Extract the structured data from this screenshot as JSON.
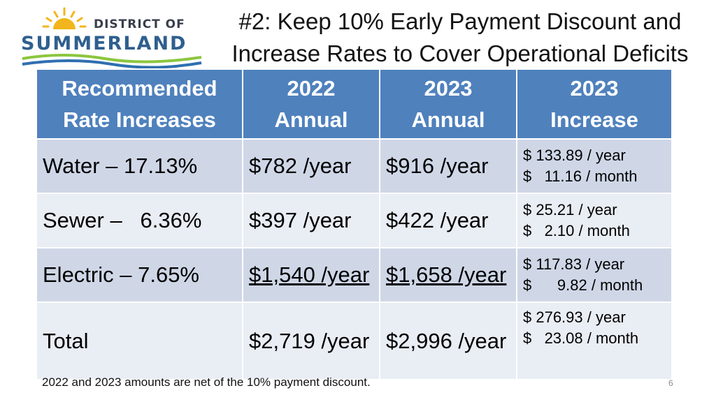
{
  "logo": {
    "line1": "DISTRICT OF",
    "line2": "SUMMERLAND"
  },
  "title": {
    "line1": "#2: Keep 10% Early Payment Discount and",
    "line2": "Increase Rates to Cover Operational Deficits"
  },
  "table": {
    "headers": [
      {
        "line1": "Recommended",
        "line2": "Rate Increases"
      },
      {
        "line1": "2022",
        "line2": "Annual"
      },
      {
        "line1": "2023",
        "line2": "Annual"
      },
      {
        "line1": "2023",
        "line2": "Increase"
      }
    ],
    "rows": [
      {
        "label": "Water – 17.13%",
        "annual_2022": "$782 /year",
        "annual_2023": "$916 /year",
        "increase_year": "$ 133.89 / year",
        "increase_month": "$   11.16 / month"
      },
      {
        "label": "Sewer –   6.36%",
        "annual_2022": "$397 /year",
        "annual_2023": "$422 /year",
        "increase_year": "$ 25.21 / year",
        "increase_month": "$   2.10 / month"
      },
      {
        "label": "Electric – 7.65%",
        "annual_2022": "$1,540 /year",
        "annual_2023": "$1,658 /year",
        "increase_year": "$ 117.83 / year",
        "increase_month": "$      9.82 / month"
      },
      {
        "label": "Total",
        "annual_2022": "$2,719 /year",
        "annual_2023": "$2,996 /year",
        "increase_year": "$ 276.93 / year",
        "increase_month": "$   23.08 / month"
      }
    ]
  },
  "footnote": "2022 and 2023 amounts are net of the 10% payment discount.",
  "page_number": "6",
  "colors": {
    "header_bg": "#4f81bd",
    "row_dark": "#cfd7e7",
    "row_light": "#e9edf4",
    "logo_blue": "#2f5f8f",
    "logo_sun": "#f2b51d"
  }
}
